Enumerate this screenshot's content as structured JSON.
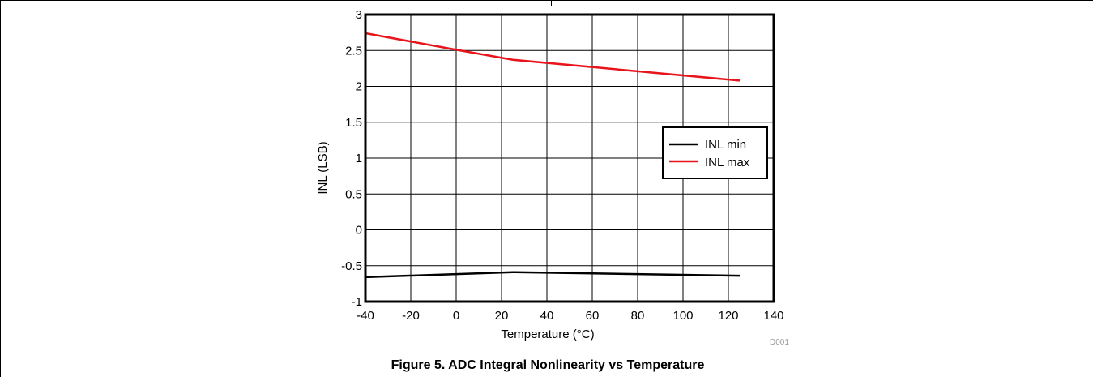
{
  "chart_data": {
    "type": "line",
    "title": "",
    "xlabel": "Temperature (°C)",
    "ylabel": "INL (LSB)",
    "xlim": [
      -40,
      140
    ],
    "ylim": [
      -1,
      3
    ],
    "xticks": [
      -40,
      -20,
      0,
      20,
      40,
      60,
      80,
      100,
      120,
      140
    ],
    "yticks": [
      -1,
      -0.5,
      0,
      0.5,
      1,
      1.5,
      2,
      2.5,
      3
    ],
    "grid": true,
    "legend_position": "right",
    "series": [
      {
        "name": "INL min",
        "color": "#000000",
        "x": [
          -40,
          25,
          125
        ],
        "y": [
          -0.66,
          -0.59,
          -0.64
        ]
      },
      {
        "name": "INL max",
        "color": "#e8141b",
        "x": [
          -40,
          0,
          25,
          125
        ],
        "y": [
          2.74,
          2.51,
          2.37,
          2.08
        ]
      }
    ]
  },
  "figure_code": "D001",
  "caption": "Figure 5. ADC Integral Nonlinearity vs Temperature"
}
